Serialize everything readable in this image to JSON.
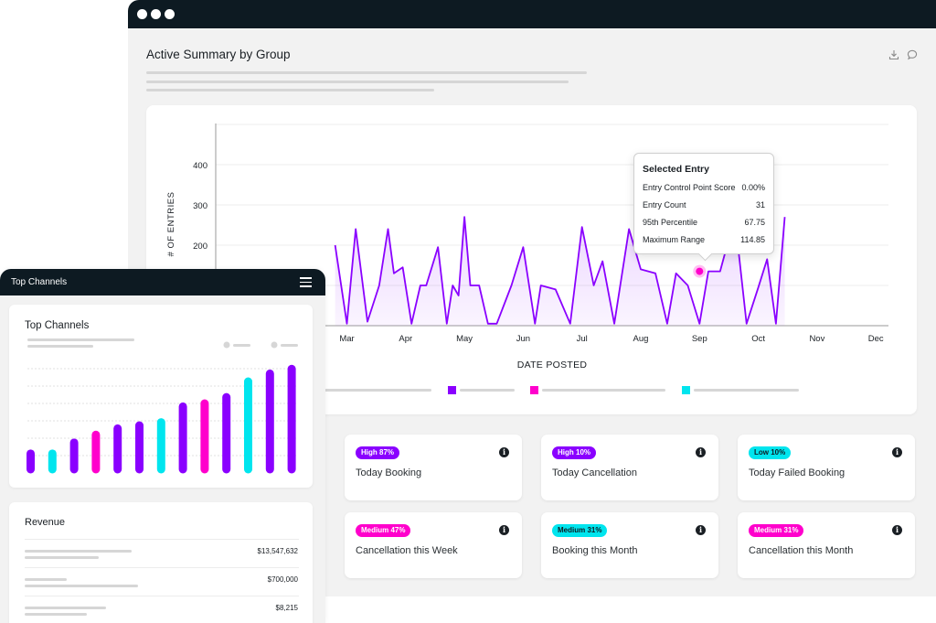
{
  "main": {
    "title": "Active Summary by Group",
    "icons": [
      "download-icon",
      "comment-icon"
    ]
  },
  "chart_data": {
    "type": "line",
    "ylabel": "# OF ENTRIES",
    "xlabel": "DATE POSTED",
    "yticks": [
      200,
      300,
      400
    ],
    "ylim": [
      0,
      500
    ],
    "x_tick_labels": [
      "Mar",
      "Apr",
      "May",
      "Jun",
      "Jul",
      "Aug",
      "Sep",
      "Oct",
      "Nov",
      "Dec"
    ],
    "series": [
      {
        "color": "#8a00ff",
        "x": [
          2.8,
          3.0,
          3.15,
          3.35,
          3.55,
          3.7,
          3.8,
          3.95,
          4.1,
          4.25,
          4.35,
          4.55,
          4.7,
          4.8,
          4.9,
          5.0,
          5.1,
          5.25,
          5.4,
          5.55,
          5.8,
          6.0,
          6.2,
          6.3,
          6.55,
          6.8,
          7.0,
          7.2,
          7.35,
          7.55,
          7.8,
          8.0,
          8.25,
          8.45,
          8.6,
          8.8,
          9.0,
          9.15,
          9.35,
          9.6,
          9.8,
          10.0,
          10.15,
          10.3,
          10.45
        ],
        "y": [
          200,
          5,
          240,
          10,
          100,
          240,
          130,
          145,
          5,
          100,
          100,
          195,
          5,
          100,
          75,
          270,
          100,
          100,
          5,
          5,
          100,
          195,
          5,
          100,
          90,
          5,
          245,
          100,
          160,
          5,
          240,
          140,
          130,
          5,
          130,
          100,
          5,
          135,
          135,
          270,
          5,
          95,
          165,
          5,
          270
        ]
      }
    ],
    "selected_x": 9.0,
    "selected_y": 135,
    "legend": [
      {
        "color": "#8a00ff"
      },
      {
        "color": "#ff00cc"
      },
      {
        "color": "#00e5ee"
      }
    ]
  },
  "tooltip": {
    "title": "Selected Entry",
    "rows": [
      {
        "label": "Entry Control Point Score",
        "value": "0.00%"
      },
      {
        "label": "Entry Count",
        "value": "31"
      },
      {
        "label": "95th Percentile",
        "value": "67.75"
      },
      {
        "label": "Maximum Range",
        "value": "114.85"
      }
    ]
  },
  "stats": [
    {
      "badge": "High 87%",
      "badge_color": "#8a00ff",
      "badge_text_color": "#ffffff",
      "label": "Today Booking"
    },
    {
      "badge": "High 10%",
      "badge_color": "#8a00ff",
      "badge_text_color": "#ffffff",
      "label": "Today Cancellation"
    },
    {
      "badge": "Low 10%",
      "badge_color": "#00e5ee",
      "badge_text_color": "#0d1a22",
      "label": "Today Failed Booking"
    },
    {
      "badge": "Medium 47%",
      "badge_color": "#ff00cc",
      "badge_text_color": "#ffffff",
      "label": "Cancellation this Week"
    },
    {
      "badge": "Medium 31%",
      "badge_color": "#00e5ee",
      "badge_text_color": "#0d1a22",
      "label": "Booking this Month"
    },
    {
      "badge": "Medium 31%",
      "badge_color": "#ff00cc",
      "badge_text_color": "#ffffff",
      "label": "Cancellation this Month"
    }
  ],
  "side": {
    "title": "Top Channels",
    "card_title": "Top Channels",
    "bars": [
      {
        "value": 10,
        "color": "#8a00ff"
      },
      {
        "value": 10,
        "color": "#00e5ee"
      },
      {
        "value": 17,
        "color": "#8a00ff"
      },
      {
        "value": 22,
        "color": "#ff00cc"
      },
      {
        "value": 26,
        "color": "#8a00ff"
      },
      {
        "value": 28,
        "color": "#8a00ff"
      },
      {
        "value": 30,
        "color": "#00e5ee"
      },
      {
        "value": 40,
        "color": "#8a00ff"
      },
      {
        "value": 42,
        "color": "#ff00cc"
      },
      {
        "value": 46,
        "color": "#8a00ff"
      },
      {
        "value": 56,
        "color": "#00e5ee"
      },
      {
        "value": 61,
        "color": "#8a00ff"
      },
      {
        "value": 64,
        "color": "#8a00ff"
      }
    ],
    "bar_max": 70,
    "revenue_title": "Revenue",
    "revenue_values": [
      "$13,547,632",
      "$700,000",
      "$8,215"
    ]
  }
}
